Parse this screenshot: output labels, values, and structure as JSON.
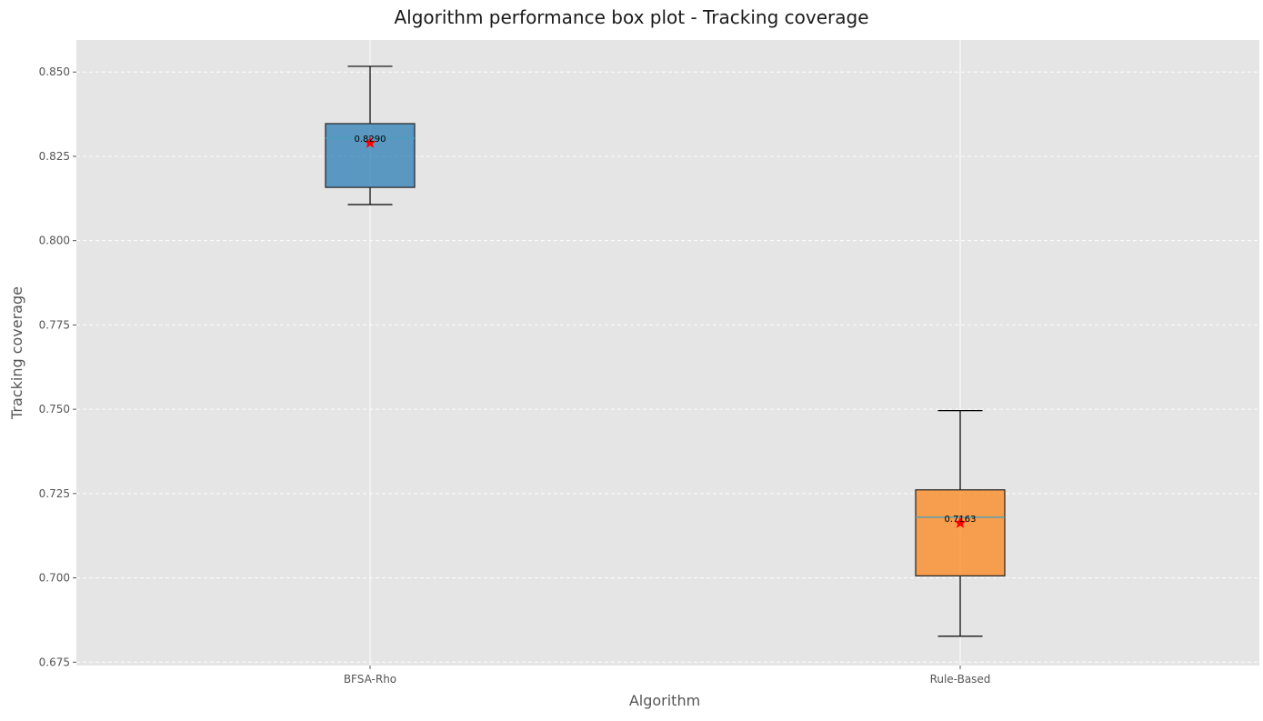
{
  "chart_data": {
    "type": "box",
    "title": "Algorithm performance box plot - Tracking coverage",
    "xlabel": "Algorithm",
    "ylabel": "Tracking coverage",
    "ylim": [
      0.674,
      0.8595
    ],
    "yticks": [
      0.675,
      0.7,
      0.725,
      0.75,
      0.775,
      0.8,
      0.825,
      0.85
    ],
    "ytick_labels": [
      "0.675",
      "0.700",
      "0.725",
      "0.750",
      "0.775",
      "0.800",
      "0.825",
      "0.850"
    ],
    "grid": true,
    "categories": [
      "BFSA-Rho",
      "Rule-Based"
    ],
    "boxes": [
      {
        "category": "BFSA-Rho",
        "whisker_low": 0.8107,
        "q1": 0.8158,
        "median": 0.8304,
        "q3": 0.8347,
        "whisker_high": 0.8517,
        "mean": 0.829,
        "mean_label": "0.8290",
        "color": "#1f77b4"
      },
      {
        "category": "Rule-Based",
        "whisker_low": 0.6827,
        "q1": 0.7006,
        "median": 0.718,
        "q3": 0.7261,
        "whisker_high": 0.7496,
        "mean": 0.7163,
        "mean_label": "0.7163",
        "color": "#ff7f0e"
      }
    ],
    "mean_marker_color": "#ff0000",
    "median_line_color": "#4a9fb8",
    "background_color": "#e5e5e5"
  }
}
